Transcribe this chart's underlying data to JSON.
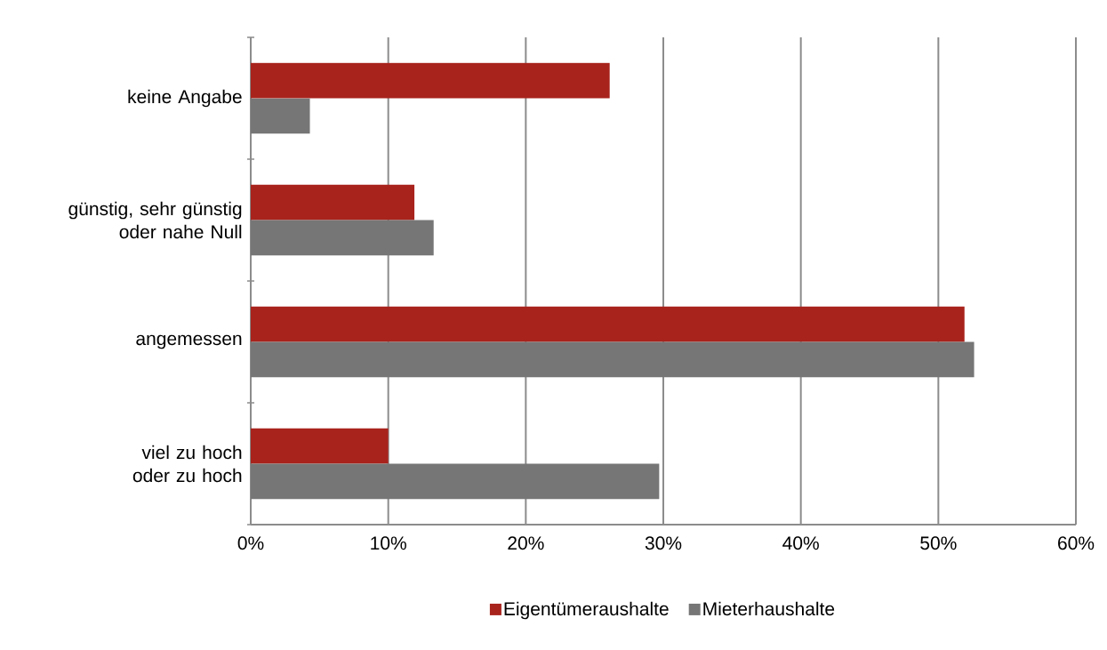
{
  "chart_data": {
    "type": "bar",
    "orientation": "horizontal",
    "categories": [
      "keine Angabe",
      "günstig, sehr günstig oder nahe Null",
      "angemessen",
      "viel zu hoch oder zu hoch"
    ],
    "series": [
      {
        "name": "Eigentümeraushalte",
        "color": "#a8231c",
        "values": [
          26.1,
          11.9,
          51.9,
          10.0
        ]
      },
      {
        "name": "Mieterhaushalte",
        "color": "#767676",
        "values": [
          4.3,
          13.3,
          52.6,
          29.7
        ]
      }
    ],
    "xlim": [
      0,
      60
    ],
    "xticks": [
      {
        "value": 0,
        "label": "0%"
      },
      {
        "value": 10,
        "label": "10%"
      },
      {
        "value": 20,
        "label": "20%"
      },
      {
        "value": 30,
        "label": "30%"
      },
      {
        "value": 40,
        "label": "40%"
      },
      {
        "value": 50,
        "label": "50%"
      },
      {
        "value": 60,
        "label": "60%"
      }
    ],
    "grid": "x",
    "legend": "bottom"
  }
}
